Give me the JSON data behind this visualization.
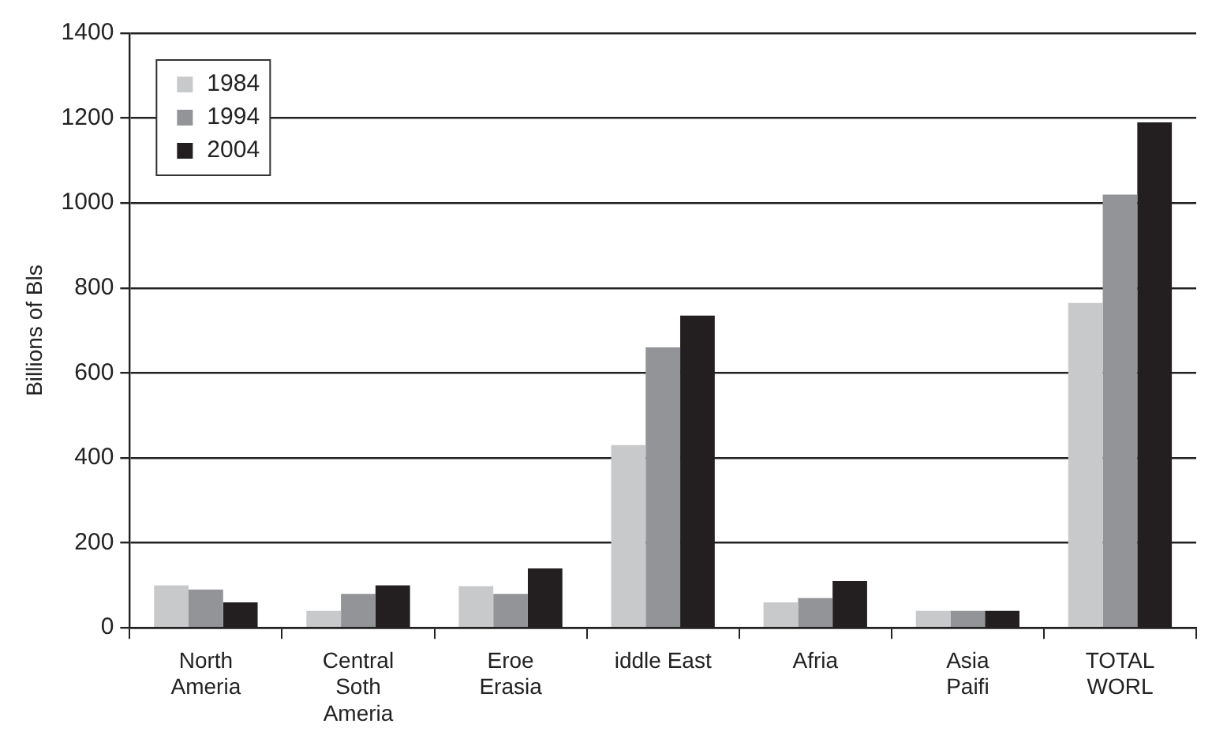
{
  "chart_data": {
    "type": "bar",
    "ylabel": "Billions of Bls",
    "categories": [
      "North\nAmeria",
      "Central\nSoth\nAmeria",
      "Eroe\nErasia",
      "iddle East",
      "Afria",
      "Asia\nPaifi",
      "TOTAL\nWORL"
    ],
    "series": [
      {
        "name": "1984",
        "color": "#c8c9cb",
        "values": [
          100,
          40,
          98,
          430,
          60,
          40,
          765
        ]
      },
      {
        "name": "1994",
        "color": "#939497",
        "values": [
          90,
          80,
          80,
          660,
          70,
          40,
          1020
        ]
      },
      {
        "name": "2004",
        "color": "#231f20",
        "values": [
          60,
          100,
          140,
          735,
          110,
          40,
          1190
        ]
      }
    ],
    "ylim": [
      0,
      1400
    ],
    "yticks": [
      0,
      200,
      400,
      600,
      800,
      1000,
      1200,
      1400
    ],
    "grid": "y",
    "legend": "top left"
  }
}
